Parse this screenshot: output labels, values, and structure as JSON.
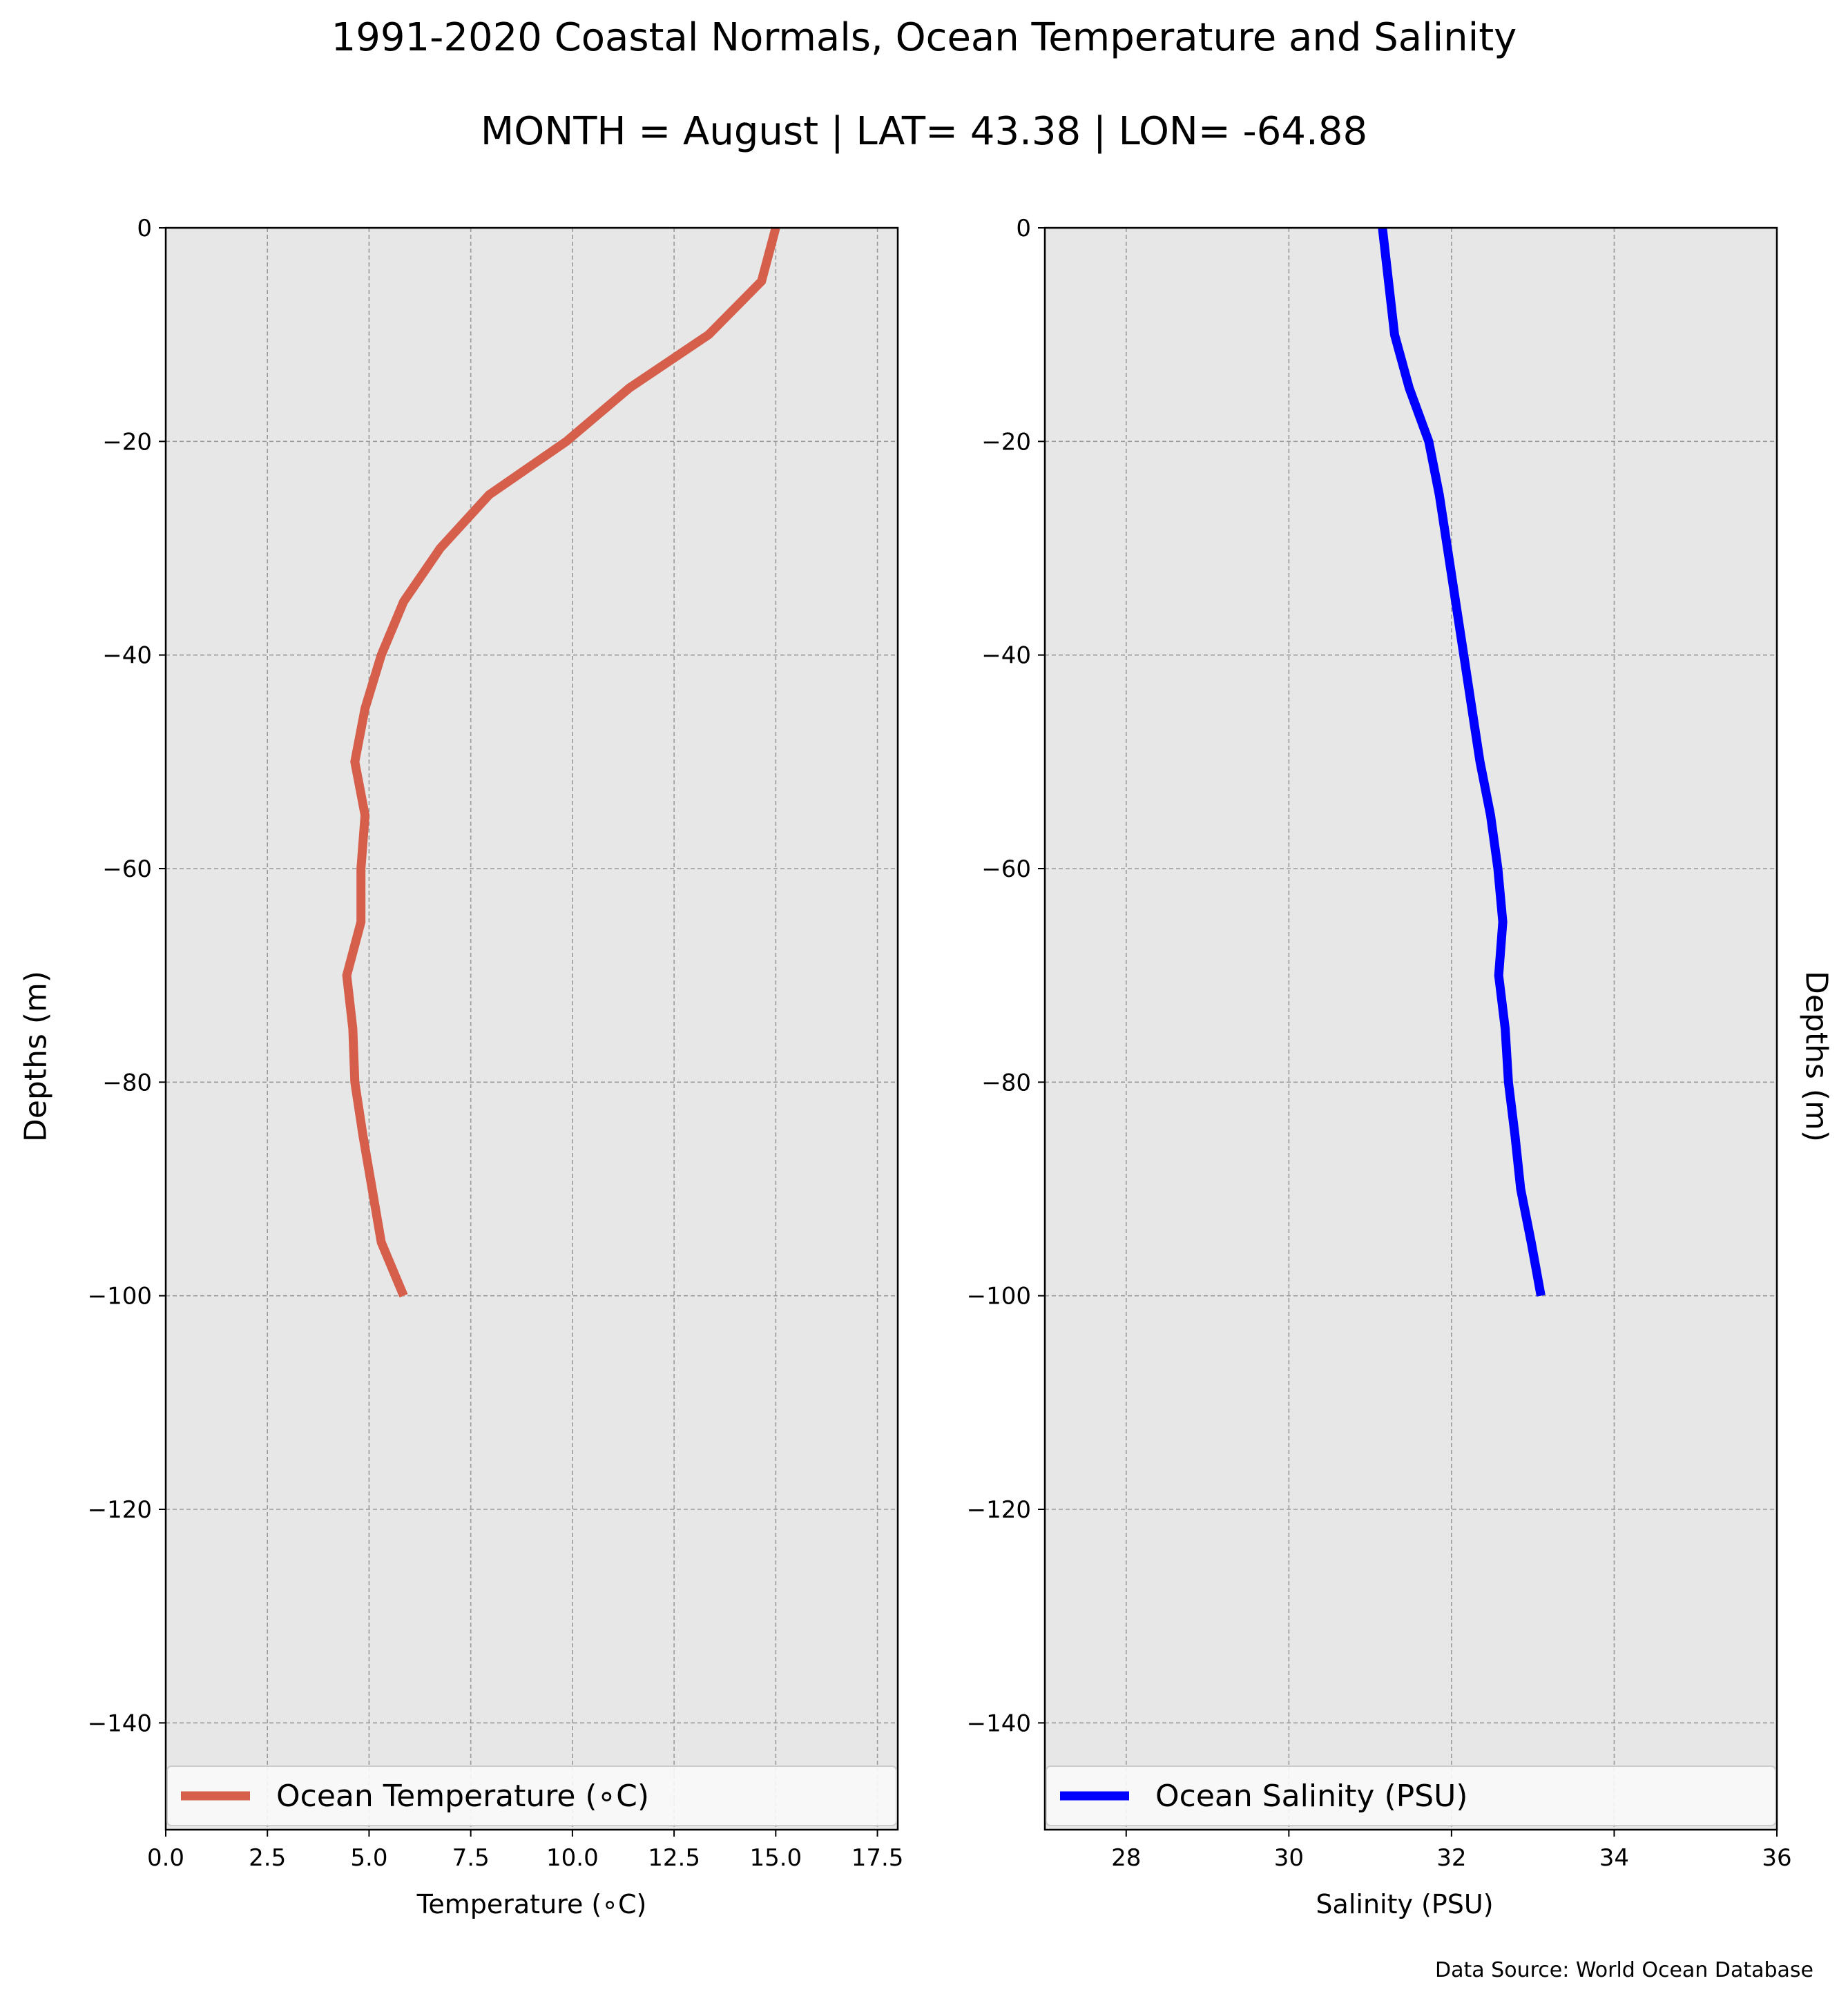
{
  "title": "1991-2020 Coastal Normals, Ocean Temperature and Salinity",
  "subtitle": "MONTH = August | LAT= 43.38 | LON= -64.88",
  "source": "Data Source: World Ocean Database",
  "chart_data": [
    {
      "type": "line",
      "xlabel": "Temperature (∘C)",
      "ylabel": "Depths (m)",
      "xlim": [
        0,
        18
      ],
      "ylim": [
        -150,
        0
      ],
      "xticks": [
        "0.0",
        "2.5",
        "5.0",
        "7.5",
        "10.0",
        "12.5",
        "15.0",
        "17.5"
      ],
      "xtick_values": [
        0,
        2.5,
        5,
        7.5,
        10,
        12.5,
        15,
        17.5
      ],
      "yticks": [
        "0",
        "−20",
        "−40",
        "−60",
        "−80",
        "−100",
        "−120",
        "−140"
      ],
      "ytick_values": [
        0,
        -20,
        -40,
        -60,
        -80,
        -100,
        -120,
        -140
      ],
      "grid": true,
      "legend_position": "bottom",
      "series": [
        {
          "name": "Ocean Temperature (∘C)",
          "color": "#d65f4c",
          "x": [
            15.0,
            14.65,
            13.35,
            11.4,
            9.85,
            7.95,
            6.75,
            5.85,
            5.3,
            4.9,
            4.65,
            4.9,
            4.8,
            4.8,
            4.45,
            4.6,
            4.65,
            4.85,
            5.3,
            5.85
          ],
          "y": [
            0,
            -5,
            -10,
            -15,
            -20,
            -25,
            -30,
            -35,
            -40,
            -45,
            -50,
            -55,
            -60,
            -65,
            -70,
            -75,
            -80,
            -85,
            -95,
            -100
          ]
        }
      ]
    },
    {
      "type": "line",
      "xlabel": "Salinity (PSU)",
      "ylabel": "Depths (m)",
      "xlim": [
        27,
        36
      ],
      "ylim": [
        -150,
        0
      ],
      "xticks": [
        "28",
        "30",
        "32",
        "34",
        "36"
      ],
      "xtick_values": [
        28,
        30,
        32,
        34,
        36
      ],
      "yticks": [
        "0",
        "−20",
        "−40",
        "−60",
        "−80",
        "−100",
        "−120",
        "−140"
      ],
      "ytick_values": [
        0,
        -20,
        -40,
        -60,
        -80,
        -100,
        -120,
        -140
      ],
      "grid": true,
      "legend_position": "bottom",
      "series": [
        {
          "name": "Ocean Salinity (PSU)",
          "color": "#0000ff",
          "x": [
            31.15,
            31.3,
            31.48,
            31.72,
            31.85,
            31.95,
            32.05,
            32.15,
            32.25,
            32.35,
            32.48,
            32.57,
            32.63,
            32.58,
            32.66,
            32.7,
            32.78,
            32.85,
            32.98,
            33.1
          ],
          "y": [
            0,
            -10,
            -15,
            -20,
            -25,
            -30,
            -35,
            -40,
            -45,
            -50,
            -55,
            -60,
            -65,
            -70,
            -75,
            -80,
            -85,
            -90,
            -95,
            -100
          ]
        }
      ]
    }
  ]
}
